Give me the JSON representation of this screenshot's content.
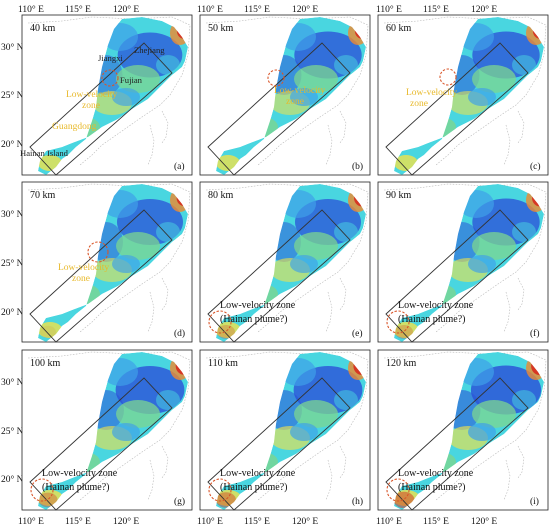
{
  "figure": {
    "top_longitude_labels": [
      "110° E",
      "115° E",
      "120° E"
    ],
    "bottom_longitude_labels": [
      "110° E",
      "115° E",
      "120° E"
    ],
    "latitude_labels": [
      "30° N",
      "25° N",
      "20° N"
    ],
    "panels": [
      {
        "id": "a",
        "depth": "40 km",
        "letter": "(a)",
        "blueness": 0.45,
        "redness": 0.35
      },
      {
        "id": "b",
        "depth": "50 km",
        "letter": "(b)",
        "blueness": 0.55,
        "redness": 0.35
      },
      {
        "id": "c",
        "depth": "60 km",
        "letter": "(c)",
        "blueness": 0.55,
        "redness": 0.35
      },
      {
        "id": "d",
        "depth": "70 km",
        "letter": "(d)",
        "blueness": 0.5,
        "redness": 0.4
      },
      {
        "id": "e",
        "depth": "80 km",
        "letter": "(e)",
        "blueness": 0.5,
        "redness": 0.5
      },
      {
        "id": "f",
        "depth": "90 km",
        "letter": "(f)",
        "blueness": 0.55,
        "redness": 0.5
      },
      {
        "id": "g",
        "depth": "100 km",
        "letter": "(g)",
        "blueness": 0.6,
        "redness": 0.55
      },
      {
        "id": "h",
        "depth": "110 km",
        "letter": "(h)",
        "blueness": 0.6,
        "redness": 0.6
      },
      {
        "id": "i",
        "depth": "120 km",
        "letter": "(i)",
        "blueness": 0.65,
        "redness": 0.65
      }
    ],
    "annotations": {
      "panel_a": {
        "jiangxi": "Jiangxi",
        "zhejiang": "Zhejiang",
        "fujian": "Fujian",
        "zone_line1": "Low-velocity",
        "zone_line2": "zone",
        "guangdong": "Guangdong",
        "hainan": "Hainan Island"
      },
      "panel_b": {
        "zone_line1": "Low-velocity",
        "zone_line2": "zone"
      },
      "panel_c": {
        "zone_line1": "Low-velocity",
        "zone_line2": "zone"
      },
      "panel_d": {
        "zone_line1": "Low-velocity",
        "zone_line2": "zone"
      },
      "plume_line1": "Low-velocity zone",
      "plume_line2": "(Hainan plume?)"
    },
    "colors": {
      "deep_blue": "#2b50d8",
      "mid_blue": "#3fa0e8",
      "cyan": "#49d6e0",
      "green": "#7cd690",
      "yellow": "#f0e24a",
      "orange": "#f08a2e",
      "red": "#d8261c",
      "annotation_yellow": "#e8b92a",
      "ring_orange": "#d9562a"
    }
  }
}
